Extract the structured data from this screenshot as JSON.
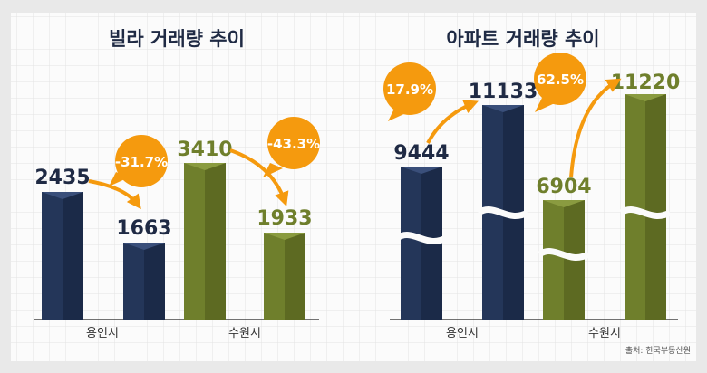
{
  "colors": {
    "navy": "#243659",
    "olive": "#6f7f2c",
    "orange": "#f59a0e",
    "text": "#1f2a44",
    "panel": "#fbfbfb",
    "grid": "#e2e2e2"
  },
  "source": "출처: 한국부동산원",
  "chart_data": [
    {
      "type": "bar",
      "title": "빌라 거래량 추이",
      "categories": [
        "용인시",
        "수원시"
      ],
      "series": [
        {
          "values": [
            2435,
            3410
          ]
        },
        {
          "values": [
            1663,
            1933
          ]
        }
      ],
      "value_labels": [
        "2435",
        "1663",
        "3410",
        "1933"
      ],
      "changes": [
        "-31.7%",
        "-43.3%"
      ],
      "ylim": [
        0,
        4000
      ]
    },
    {
      "type": "bar",
      "title": "아파트 거래량 추이",
      "categories": [
        "용인시",
        "수원시"
      ],
      "series": [
        {
          "values": [
            9444,
            6904
          ]
        },
        {
          "values": [
            11133,
            11220
          ]
        }
      ],
      "value_labels": [
        "9444",
        "11133",
        "6904",
        "11220"
      ],
      "changes": [
        "17.9%",
        "62.5%"
      ],
      "axis_break": true
    }
  ]
}
